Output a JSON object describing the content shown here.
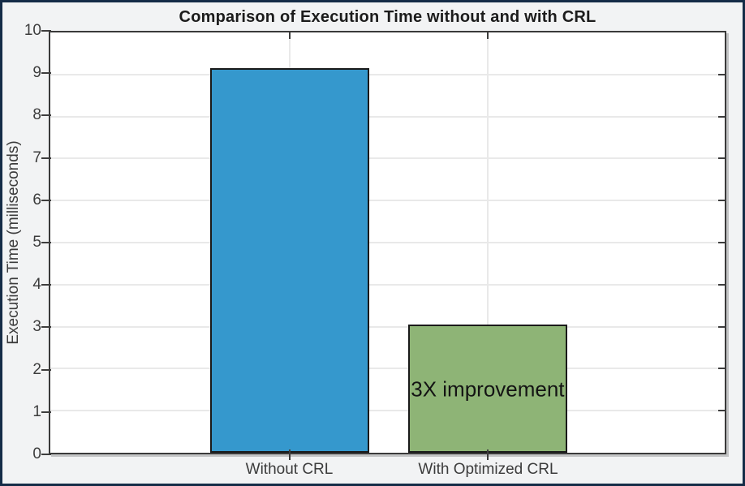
{
  "chart_data": {
    "type": "bar",
    "title": "Comparison of Execution Time without and with CRL",
    "xlabel": "",
    "ylabel": "Execution Time (milliseconds)",
    "categories": [
      "Without CRL",
      "With Optimized CRL"
    ],
    "values": [
      9.15,
      3.05
    ],
    "ylim": [
      0,
      10
    ],
    "yticks": [
      0,
      1,
      2,
      3,
      4,
      5,
      6,
      7,
      8,
      9,
      10
    ],
    "grid": true,
    "legend": null,
    "annotation": {
      "text": "3X improvement",
      "bar_index": 1,
      "y_value": 1.5
    },
    "colors": {
      "bars": [
        "#3598cd",
        "#8eb476"
      ],
      "bar_edge": "#1a1a1a",
      "grid": "#e9e9e9",
      "axis_box": "#3a3a3a",
      "tick_label": "#3c3c3c",
      "title": "#1c1c1c",
      "figure_background": "#f2f3f4",
      "plot_background": "#ffffff",
      "outer_frame": "#152c47"
    },
    "layout": {
      "bar_centers_frac": [
        0.3551,
        0.6485
      ],
      "bar_width_frac": 0.236,
      "legend_position": "none"
    }
  }
}
